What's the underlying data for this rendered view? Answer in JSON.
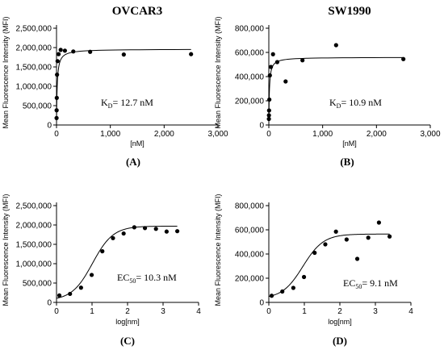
{
  "chart_data": [
    {
      "panel": "(A)",
      "type": "scatter",
      "title": "OVCAR3",
      "xlabel": "[nM]",
      "ylabel": "Mean Fluorescence Intensity (MFI)",
      "xlim": [
        0,
        3000
      ],
      "ylim": [
        0,
        2500000
      ],
      "xticks": [
        0,
        1000,
        2000,
        3000
      ],
      "xtick_labels": [
        "0",
        "1,000",
        "2,000",
        "3,000"
      ],
      "yticks": [
        0,
        500000,
        1000000,
        1500000,
        2000000,
        2500000
      ],
      "ytick_labels": [
        "0",
        "500,000",
        "1,000,000",
        "1,500,000",
        "2,000,000",
        "2,500,000"
      ],
      "annotation": {
        "main": "K",
        "sub": "D",
        "rest": "= 12.7 nM"
      },
      "fit": {
        "model": "one-site binding",
        "bmax": 1960000,
        "kd": 12.7,
        "xmax": 2500
      },
      "points": [
        {
          "x": 1.2,
          "y": 180000
        },
        {
          "x": 2.4,
          "y": 380000
        },
        {
          "x": 4.9,
          "y": 700000
        },
        {
          "x": 9.8,
          "y": 1300000
        },
        {
          "x": 19.5,
          "y": 1650000
        },
        {
          "x": 39,
          "y": 1830000
        },
        {
          "x": 78,
          "y": 1940000
        },
        {
          "x": 156,
          "y": 1920000
        },
        {
          "x": 312,
          "y": 1900000
        },
        {
          "x": 625,
          "y": 1890000
        },
        {
          "x": 1250,
          "y": 1820000
        },
        {
          "x": 2500,
          "y": 1830000
        }
      ]
    },
    {
      "panel": "(B)",
      "type": "scatter",
      "title": "SW1990",
      "xlabel": "[nM]",
      "ylabel": "Mean Fluorescence Intensity (MFI)",
      "xlim": [
        0,
        3000
      ],
      "ylim": [
        0,
        800000
      ],
      "xticks": [
        0,
        1000,
        2000,
        3000
      ],
      "xtick_labels": [
        "0",
        "1,000",
        "2,000",
        "3,000"
      ],
      "yticks": [
        0,
        200000,
        400000,
        600000,
        800000
      ],
      "ytick_labels": [
        "0",
        "200,000",
        "400,000",
        "600,000",
        "800,000"
      ],
      "annotation": {
        "main": "K",
        "sub": "D",
        "rest": "= 10.9 nM"
      },
      "fit": {
        "model": "one-site binding",
        "bmax": 560000,
        "kd": 10.9,
        "xmax": 2500
      },
      "points": [
        {
          "x": 1.2,
          "y": 50000
        },
        {
          "x": 2.4,
          "y": 80000
        },
        {
          "x": 4.9,
          "y": 120000
        },
        {
          "x": 9.8,
          "y": 210000
        },
        {
          "x": 19.5,
          "y": 410000
        },
        {
          "x": 39,
          "y": 480000
        },
        {
          "x": 78,
          "y": 585000
        },
        {
          "x": 156,
          "y": 520000
        },
        {
          "x": 312,
          "y": 360000
        },
        {
          "x": 625,
          "y": 535000
        },
        {
          "x": 1250,
          "y": 660000
        },
        {
          "x": 2500,
          "y": 545000
        }
      ]
    },
    {
      "panel": "(C)",
      "type": "scatter",
      "title": "",
      "xlabel": "log[nm]",
      "ylabel": "Mean Fluorescence Intensity (MFI)",
      "xlim": [
        0,
        4
      ],
      "ylim": [
        0,
        2500000
      ],
      "xticks": [
        0,
        1,
        2,
        3,
        4
      ],
      "xtick_labels": [
        "0",
        "1",
        "2",
        "3",
        "4"
      ],
      "yticks": [
        0,
        500000,
        1000000,
        1500000,
        2000000,
        2500000
      ],
      "ytick_labels": [
        "0",
        "500,000",
        "1,000,000",
        "1,500,000",
        "2,000,000",
        "2,500,000"
      ],
      "annotation": {
        "main": "EC",
        "sub": "50",
        "rest": "= 10.3 nM"
      },
      "fit": {
        "model": "4PL",
        "bottom": 50000,
        "top": 1970000,
        "logec50": 1.013,
        "hill": 1.5,
        "xmin": 0,
        "xmax": 3.4
      },
      "points": [
        {
          "x": 0.08,
          "y": 180000
        },
        {
          "x": 0.38,
          "y": 220000
        },
        {
          "x": 0.69,
          "y": 380000
        },
        {
          "x": 0.99,
          "y": 710000
        },
        {
          "x": 1.29,
          "y": 1320000
        },
        {
          "x": 1.59,
          "y": 1660000
        },
        {
          "x": 1.89,
          "y": 1780000
        },
        {
          "x": 2.19,
          "y": 1940000
        },
        {
          "x": 2.49,
          "y": 1920000
        },
        {
          "x": 2.8,
          "y": 1900000
        },
        {
          "x": 3.1,
          "y": 1830000
        },
        {
          "x": 3.4,
          "y": 1840000
        }
      ]
    },
    {
      "panel": "(D)",
      "type": "scatter",
      "title": "",
      "xlabel": "log[nm]",
      "ylabel": "Mean Fluorescence Intensity (MFI)",
      "xlim": [
        0,
        4
      ],
      "ylim": [
        0,
        800000
      ],
      "xticks": [
        0,
        1,
        2,
        3,
        4
      ],
      "xtick_labels": [
        "0",
        "1",
        "2",
        "3",
        "4"
      ],
      "yticks": [
        0,
        200000,
        400000,
        600000,
        800000
      ],
      "ytick_labels": [
        "0",
        "200,000",
        "400,000",
        "600,000",
        "800,000"
      ],
      "annotation": {
        "main": "EC",
        "sub": "50",
        "rest": "= 9.1 nM"
      },
      "fit": {
        "model": "4PL",
        "bottom": 30000,
        "top": 565000,
        "logec50": 0.959,
        "hill": 1.5,
        "xmin": 0,
        "xmax": 3.4
      },
      "points": [
        {
          "x": 0.08,
          "y": 55000
        },
        {
          "x": 0.38,
          "y": 90000
        },
        {
          "x": 0.69,
          "y": 120000
        },
        {
          "x": 0.99,
          "y": 210000
        },
        {
          "x": 1.29,
          "y": 410000
        },
        {
          "x": 1.59,
          "y": 480000
        },
        {
          "x": 1.89,
          "y": 585000
        },
        {
          "x": 2.19,
          "y": 520000
        },
        {
          "x": 2.49,
          "y": 360000
        },
        {
          "x": 2.8,
          "y": 535000
        },
        {
          "x": 3.1,
          "y": 660000
        },
        {
          "x": 3.4,
          "y": 545000
        }
      ]
    }
  ]
}
